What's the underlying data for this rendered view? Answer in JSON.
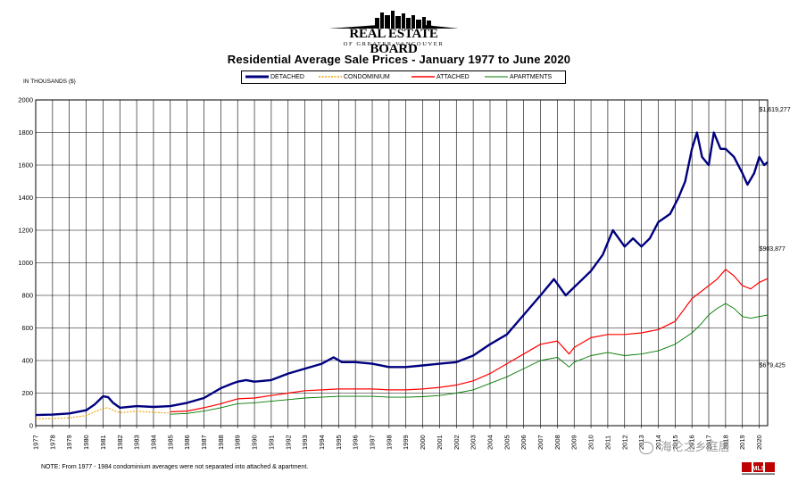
{
  "header": {
    "org_name": "REAL ESTATE BOARD",
    "org_sub": "OF GREATER VANCOUVER"
  },
  "colors": {
    "detached": "#00007f",
    "condominium": "#f0a000",
    "attached": "#ff0000",
    "apartments": "#007a00",
    "grid": "#000000"
  },
  "chart_data": {
    "type": "line",
    "title": "Residential Average Sale Prices  -  January 1977 to June 2020",
    "ylabel": "IN THOUSANDS ($)",
    "xlabel": "",
    "ylim": [
      0,
      2000
    ],
    "yticks": [
      0,
      200,
      400,
      600,
      800,
      1000,
      1200,
      1400,
      1600,
      1800,
      2000
    ],
    "xlim": [
      1977,
      2020.5
    ],
    "xticks": [
      "1977",
      "1978",
      "1979",
      "1980",
      "1981",
      "1982",
      "1983",
      "1984",
      "1985",
      "1986",
      "1987",
      "1988",
      "1989",
      "1990",
      "1991",
      "1992",
      "1993",
      "1994",
      "1995",
      "1996",
      "1997",
      "1998",
      "1999",
      "2000",
      "2001",
      "2002",
      "2003",
      "2004",
      "2005",
      "2006",
      "2007",
      "2008",
      "2009",
      "2010",
      "2011",
      "2012",
      "2013",
      "2014",
      "2015",
      "2016",
      "2017",
      "2018",
      "2019",
      "2020"
    ],
    "grid": true,
    "legend_position": "top-center",
    "series": [
      {
        "name": "DETACHED",
        "x": [
          1977,
          1978,
          1979,
          1980,
          1980.5,
          1981,
          1981.3,
          1981.6,
          1982,
          1983,
          1984,
          1985,
          1986,
          1987,
          1988,
          1988.7,
          1989,
          1989.5,
          1990,
          1991,
          1992,
          1993,
          1994,
          1994.7,
          1995.2,
          1996,
          1997,
          1998,
          1999,
          2000,
          2001,
          2002,
          2003,
          2004,
          2005,
          2006,
          2007,
          2007.8,
          2008.5,
          2009,
          2009.5,
          2010,
          2010.7,
          2011.3,
          2012,
          2012.5,
          2013,
          2013.5,
          2014,
          2014.7,
          2015.2,
          2015.6,
          2016,
          2016.3,
          2016.6,
          2017,
          2017.3,
          2017.7,
          2018,
          2018.5,
          2019,
          2019.3,
          2019.7,
          2020,
          2020.3,
          2020.5
        ],
        "values": [
          65,
          68,
          75,
          95,
          130,
          180,
          175,
          140,
          110,
          120,
          115,
          120,
          140,
          170,
          230,
          260,
          270,
          280,
          270,
          280,
          320,
          350,
          380,
          420,
          390,
          390,
          380,
          360,
          360,
          370,
          380,
          390,
          430,
          500,
          560,
          680,
          800,
          900,
          800,
          850,
          900,
          950,
          1050,
          1200,
          1100,
          1150,
          1100,
          1150,
          1250,
          1300,
          1400,
          1500,
          1700,
          1800,
          1650,
          1600,
          1800,
          1700,
          1700,
          1650,
          1550,
          1480,
          1550,
          1650,
          1600,
          1619
        ]
      },
      {
        "name": "CONDOMINIUM",
        "x": [
          1977,
          1978,
          1979,
          1980,
          1980.5,
          1981,
          1981.3,
          1981.6,
          1982,
          1983,
          1984,
          1984.9
        ],
        "values": [
          42,
          44,
          48,
          62,
          85,
          105,
          110,
          95,
          80,
          88,
          82,
          78
        ]
      },
      {
        "name": "ATTACHED",
        "x": [
          1985,
          1986,
          1987,
          1988,
          1989,
          1990,
          1991,
          1992,
          1993,
          1994,
          1995,
          1996,
          1997,
          1998,
          1999,
          2000,
          2001,
          2002,
          2003,
          2004,
          2005,
          2006,
          2007,
          2008,
          2008.7,
          2009,
          2010,
          2011,
          2012,
          2013,
          2014,
          2015,
          2016,
          2016.5,
          2017,
          2017.5,
          2018,
          2018.5,
          2019,
          2019.5,
          2020,
          2020.5
        ],
        "values": [
          85,
          90,
          110,
          135,
          165,
          170,
          185,
          200,
          215,
          220,
          225,
          225,
          225,
          220,
          220,
          225,
          235,
          250,
          275,
          320,
          380,
          440,
          500,
          520,
          440,
          480,
          540,
          560,
          560,
          570,
          590,
          640,
          780,
          820,
          860,
          900,
          960,
          920,
          860,
          840,
          880,
          903
        ]
      },
      {
        "name": "APARTMENTS",
        "x": [
          1985,
          1986,
          1987,
          1988,
          1989,
          1990,
          1991,
          1992,
          1993,
          1994,
          1995,
          1996,
          1997,
          1998,
          1999,
          2000,
          2001,
          2002,
          2003,
          2004,
          2005,
          2006,
          2007,
          2008,
          2008.7,
          2009,
          2010,
          2011,
          2012,
          2013,
          2014,
          2015,
          2016,
          2016.5,
          2017,
          2017.5,
          2018,
          2018.5,
          2019,
          2019.5,
          2020,
          2020.5
        ],
        "values": [
          70,
          75,
          90,
          110,
          135,
          140,
          150,
          160,
          170,
          175,
          180,
          180,
          180,
          175,
          175,
          178,
          185,
          200,
          220,
          260,
          300,
          350,
          400,
          420,
          360,
          390,
          430,
          450,
          430,
          440,
          460,
          500,
          570,
          620,
          680,
          720,
          750,
          720,
          670,
          660,
          670,
          679
        ]
      }
    ],
    "annotations": [
      {
        "text": "$1,619,277",
        "x": 2020.0,
        "y": 1930
      },
      {
        "text": "$903,877",
        "x": 2020.0,
        "y": 1075
      },
      {
        "text": "$679,425",
        "x": 2020.0,
        "y": 360
      }
    ]
  },
  "note": "NOTE:  From 1977 - 1984 condominium averages were not separated into attached & apartment.",
  "watermark": "海伦之乡庭居",
  "footer": {
    "mls_label": "MLS"
  }
}
